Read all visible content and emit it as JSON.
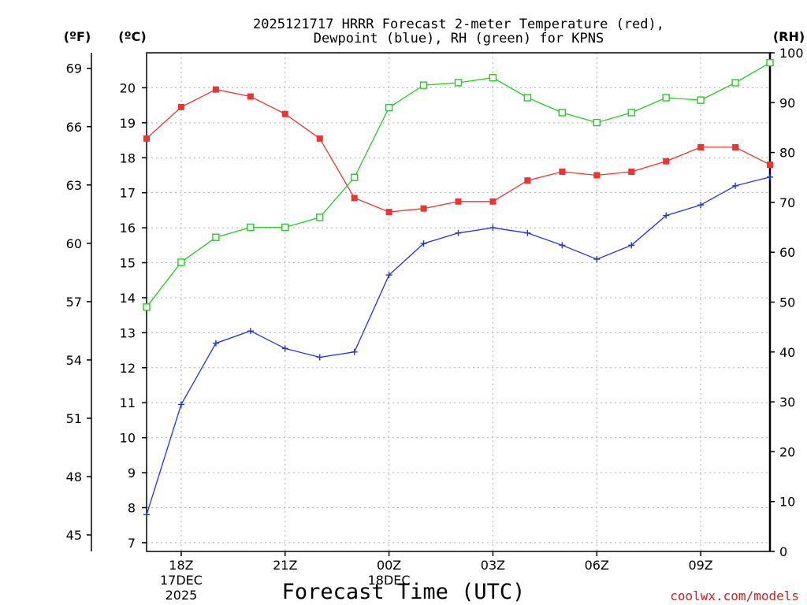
{
  "chart_data": {
    "type": "line",
    "title_line1": "2025121717 HRRR Forecast 2-meter Temperature (red),",
    "title_line2": "Dewpoint (blue), RH (green) for KPNS",
    "xlabel": "Forecast Time (UTC)",
    "credit": "coolwx.com/models",
    "unit_left_f": "(ºF)",
    "unit_left_c": "(ºC)",
    "unit_right": "(RH)",
    "x_hours": [
      0,
      1,
      2,
      3,
      4,
      5,
      6,
      7,
      8,
      9,
      10,
      11,
      12,
      13,
      14,
      15,
      16,
      17,
      18
    ],
    "x_range": [
      0,
      18
    ],
    "x_ticks": [
      {
        "hour": 1,
        "label": "18Z",
        "sub1": "17DEC",
        "sub2": "2025"
      },
      {
        "hour": 4,
        "label": "21Z",
        "sub1": "",
        "sub2": ""
      },
      {
        "hour": 7,
        "label": "00Z",
        "sub1": "18DEC",
        "sub2": ""
      },
      {
        "hour": 10,
        "label": "03Z",
        "sub1": "",
        "sub2": ""
      },
      {
        "hour": 13,
        "label": "06Z",
        "sub1": "",
        "sub2": ""
      },
      {
        "hour": 16,
        "label": "09Z",
        "sub1": "",
        "sub2": ""
      }
    ],
    "celsius_range": [
      6.75,
      21.0
    ],
    "celsius_ticks": [
      7,
      8,
      9,
      10,
      11,
      12,
      13,
      14,
      15,
      16,
      17,
      18,
      19,
      20
    ],
    "fahrenheit_ticks": [
      45,
      48,
      51,
      54,
      57,
      60,
      63,
      66,
      69
    ],
    "rh_range": [
      0,
      100
    ],
    "rh_ticks": [
      0,
      10,
      20,
      30,
      40,
      50,
      60,
      70,
      80,
      90,
      100
    ],
    "series": [
      {
        "name": "Temperature",
        "axis": "celsius",
        "color": "#ee3333",
        "marker": "filled-square",
        "values": [
          18.55,
          19.45,
          19.95,
          19.75,
          19.25,
          18.55,
          16.85,
          16.45,
          16.55,
          16.75,
          16.75,
          17.35,
          17.6,
          17.5,
          17.6,
          17.9,
          18.3,
          18.3,
          17.8
        ]
      },
      {
        "name": "Dewpoint",
        "axis": "celsius",
        "color": "#2233dd",
        "marker": "plus",
        "values": [
          7.8,
          10.95,
          12.7,
          13.05,
          12.55,
          12.3,
          12.45,
          14.65,
          15.55,
          15.85,
          16.0,
          15.85,
          15.5,
          15.1,
          15.5,
          16.35,
          16.65,
          17.2,
          17.45
        ]
      },
      {
        "name": "RH",
        "axis": "rh",
        "color": "#22cc22",
        "marker": "open-square",
        "values": [
          49,
          58,
          63,
          65,
          65,
          67,
          75,
          89,
          93.5,
          94,
          95,
          91,
          88,
          86,
          88,
          91,
          90.5,
          94,
          98
        ]
      }
    ]
  }
}
